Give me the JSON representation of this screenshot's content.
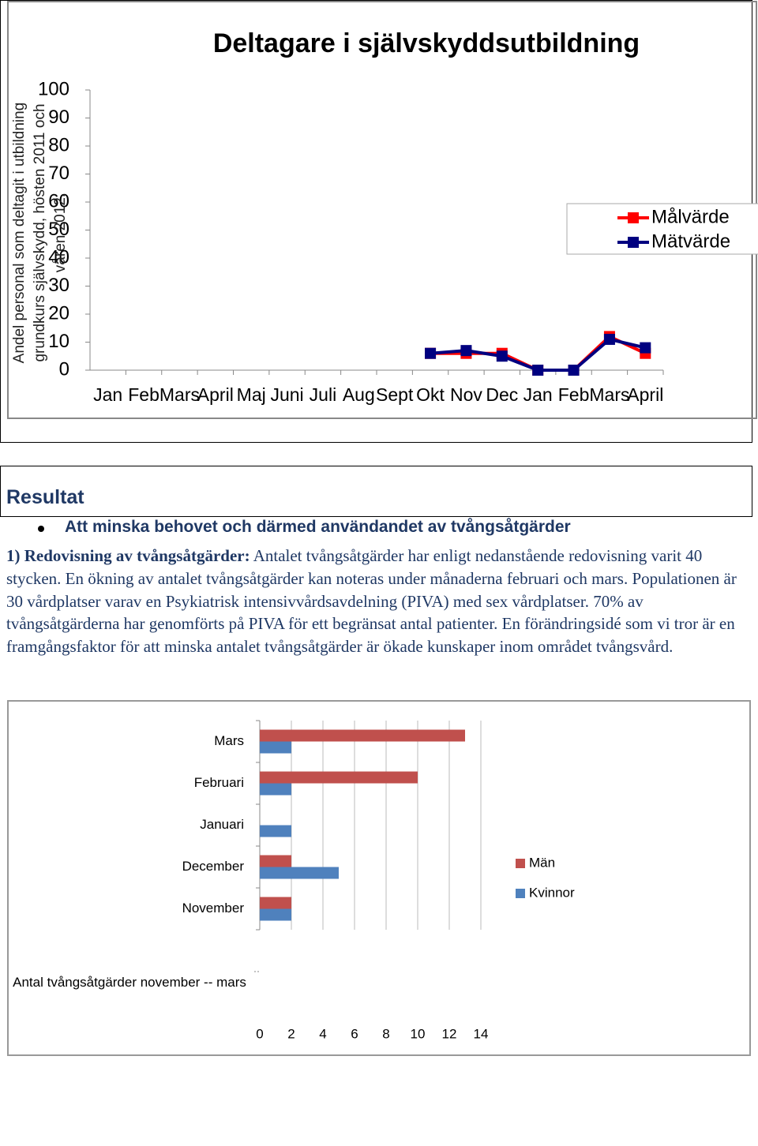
{
  "chart_data": [
    {
      "type": "line",
      "title": "Deltagare i självskyddsutbildning",
      "y_label": "Andel personal som deltagit i utbildning grundkurs självskydd, hösten 2011 och våren 2012.",
      "categories": [
        "Jan",
        "Feb",
        "Mars",
        "April",
        "Maj",
        "Juni",
        "Juli",
        "Aug",
        "Sept",
        "Okt",
        "Nov",
        "Dec",
        "Jan",
        "Feb",
        "Mars",
        "April"
      ],
      "series": [
        {
          "name": "Målvärde",
          "color": "#ff0000",
          "values": [
            null,
            null,
            null,
            null,
            null,
            null,
            null,
            null,
            null,
            6,
            6,
            6,
            0,
            0,
            12,
            6
          ]
        },
        {
          "name": "Mätvärde",
          "color": "#000080",
          "values": [
            null,
            null,
            null,
            null,
            null,
            null,
            null,
            null,
            null,
            6,
            7,
            5,
            0,
            0,
            11,
            8
          ]
        }
      ],
      "ylim": [
        0,
        100
      ],
      "yticks": [
        0,
        10,
        20,
        30,
        40,
        50,
        60,
        70,
        80,
        90,
        100
      ],
      "grid": false,
      "legend": "right"
    },
    {
      "type": "hbar",
      "title": "Antal tvångsåtgärder november -- mars",
      "categories": [
        "Mars",
        "Februari",
        "Januari",
        "December",
        "November"
      ],
      "series": [
        {
          "name": "Män",
          "color": "#c0504d",
          "values": [
            13,
            10,
            0,
            2,
            2
          ]
        },
        {
          "name": "Kvinnor",
          "color": "#4f81bd",
          "values": [
            2,
            2,
            2,
            5,
            2
          ]
        }
      ],
      "xlim": [
        0,
        14
      ],
      "xticks": [
        0,
        2,
        4,
        6,
        8,
        10,
        12,
        14
      ],
      "grid": true,
      "legend": "right"
    }
  ],
  "document": {
    "heading": "Resultat",
    "bullet": "Att minska behovet och därmed användandet av tvångsåtgärder",
    "paragraph_lead": "1) Redovisning av tvångsåtgärder:",
    "paragraph": "Antalet tvångsåtgärder har enligt nedanstående redovisning varit 40 stycken. En ökning av antalet tvångsåtgärder kan noteras under månaderna februari och mars. Populationen är 30 vårdplatser varav en Psykiatrisk intensivvårdsavdelning (PIVA) med sex vårdplatser. 70% av tvångsåtgärderna har genomförts på PIVA för ett begränsat antal patienter. En förändringsidé som vi tror är en framgångsfaktor för att minska antalet tvångsåtgärder är ökade kunskaper inom området tvångsvård."
  }
}
